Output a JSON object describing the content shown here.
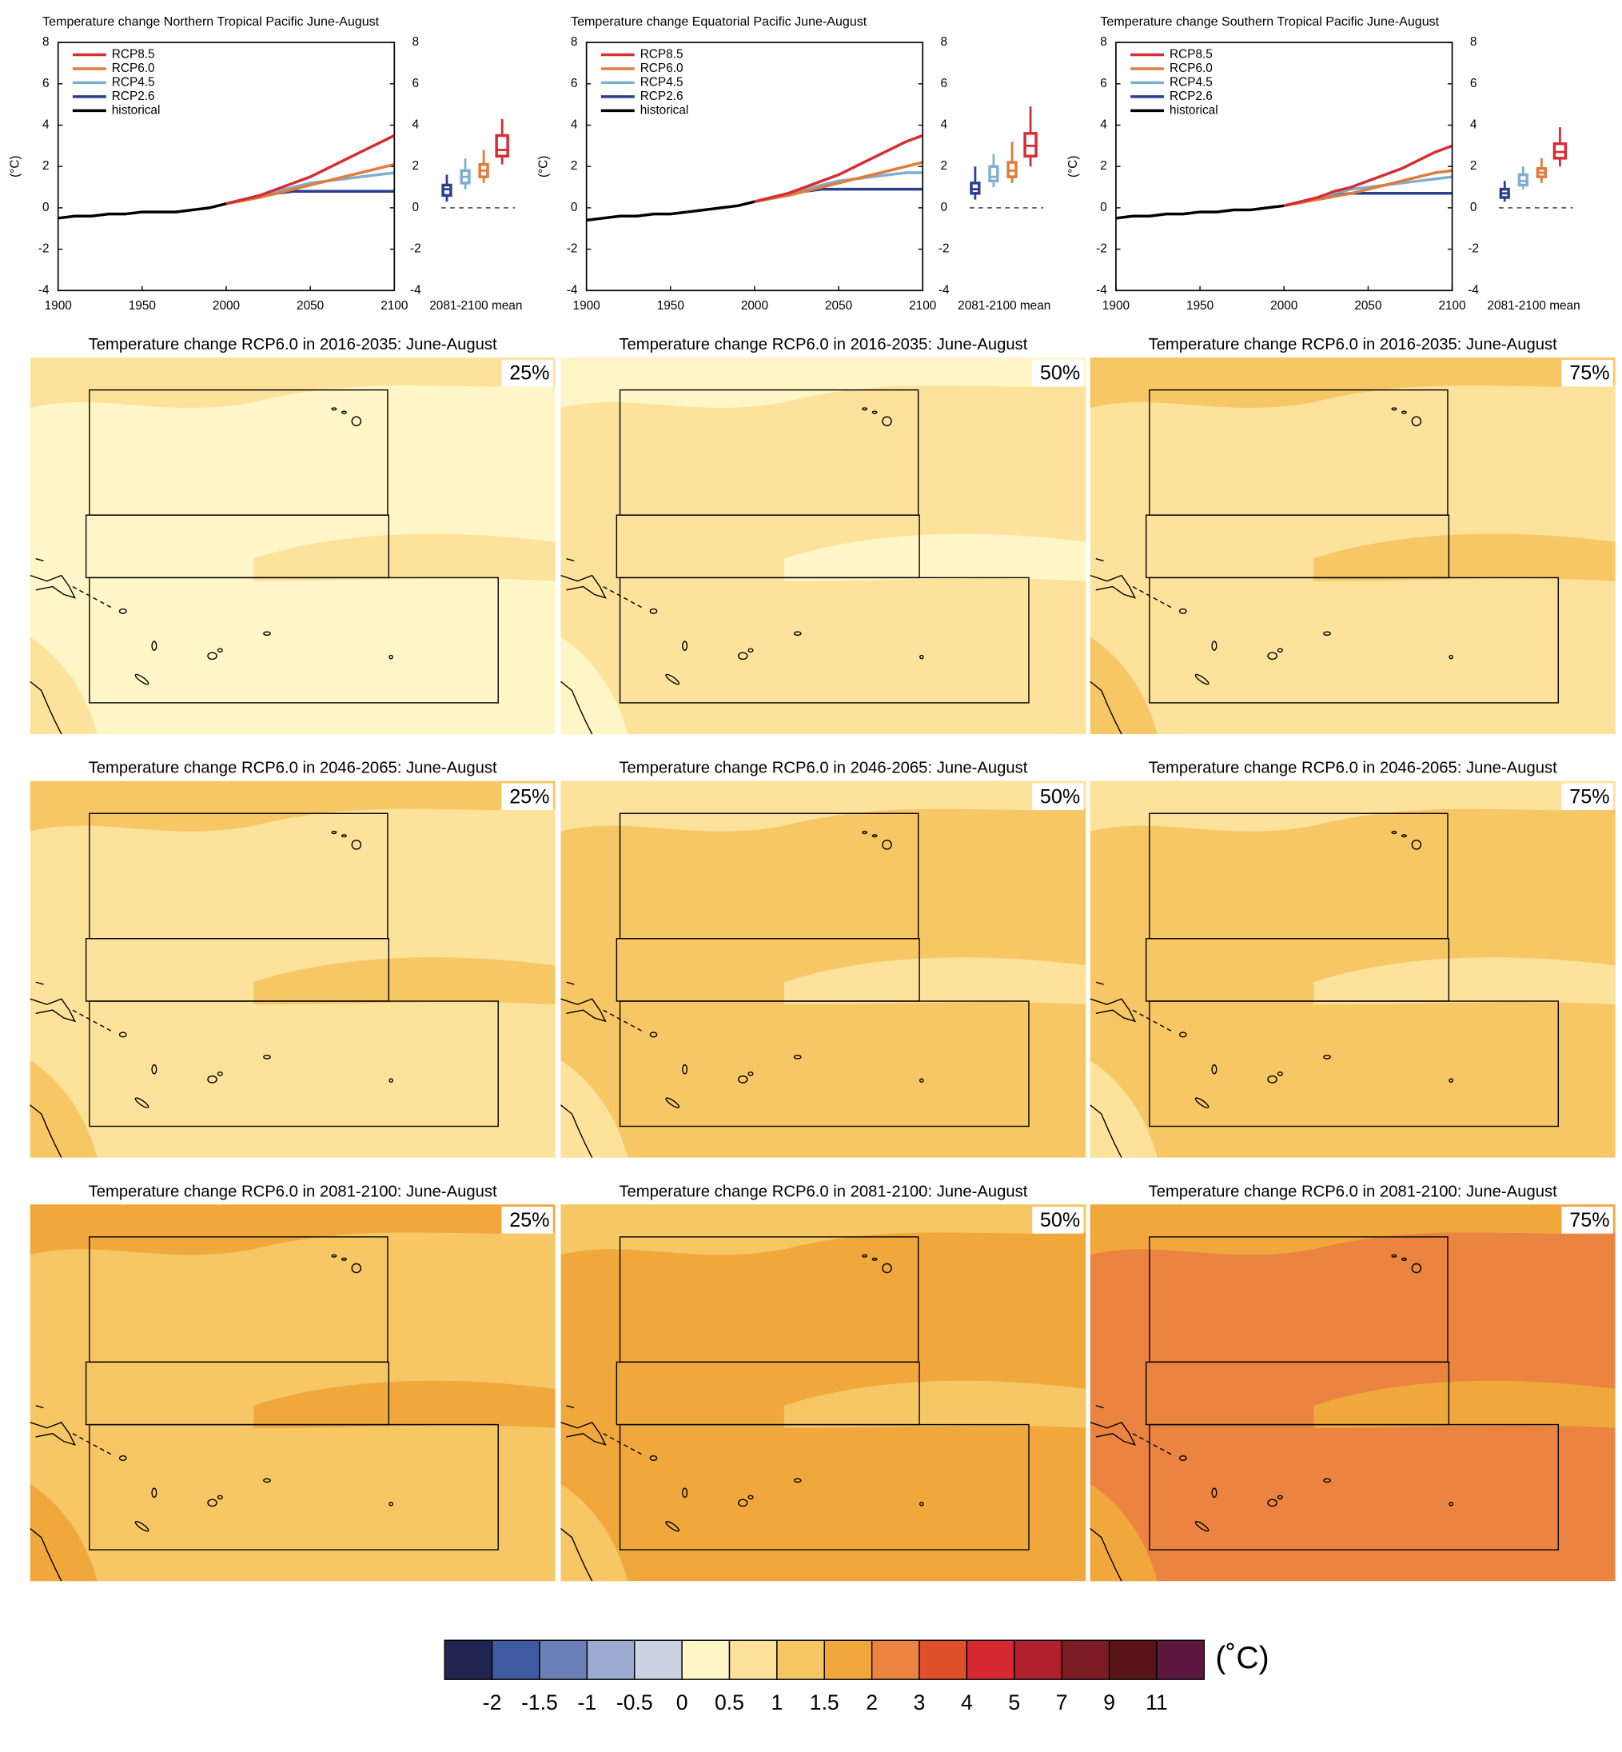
{
  "chart_data": [
    {
      "type": "line",
      "title": "Temperature change Northern Tropical Pacific June-August",
      "y_label": "(°C)",
      "box_label": "2081-2100 mean",
      "x": [
        1900,
        1910,
        1920,
        1930,
        1940,
        1950,
        1960,
        1970,
        1980,
        1990,
        2000,
        2010,
        2020,
        2030,
        2040,
        2050,
        2060,
        2070,
        2080,
        2090,
        2100
      ],
      "xlim": [
        1900,
        2100
      ],
      "xticks": [
        1900,
        1950,
        2000,
        2050,
        2100
      ],
      "ylim": [
        -4,
        8
      ],
      "yticks": [
        -4,
        -2,
        0,
        2,
        4,
        6,
        8
      ],
      "y2lim": [
        -4,
        8
      ],
      "y2ticks": [
        -4,
        -2,
        0,
        2,
        4,
        6,
        8
      ],
      "legend": "upper left",
      "series": [
        {
          "name": "RCP8.5",
          "color": "#d62d35",
          "values": [
            null,
            null,
            null,
            null,
            null,
            null,
            null,
            null,
            null,
            null,
            0.2,
            0.4,
            0.6,
            0.9,
            1.2,
            1.5,
            1.9,
            2.3,
            2.7,
            3.1,
            3.5
          ]
        },
        {
          "name": "RCP6.0",
          "color": "#e07b39",
          "values": [
            null,
            null,
            null,
            null,
            null,
            null,
            null,
            null,
            null,
            null,
            0.2,
            0.35,
            0.5,
            0.7,
            0.9,
            1.1,
            1.3,
            1.5,
            1.7,
            1.9,
            2.1
          ]
        },
        {
          "name": "RCP4.5",
          "color": "#7fafd0",
          "values": [
            null,
            null,
            null,
            null,
            null,
            null,
            null,
            null,
            null,
            null,
            0.2,
            0.4,
            0.6,
            0.8,
            1.0,
            1.2,
            1.3,
            1.4,
            1.5,
            1.6,
            1.7
          ]
        },
        {
          "name": "RCP2.6",
          "color": "#2a3f8f",
          "values": [
            null,
            null,
            null,
            null,
            null,
            null,
            null,
            null,
            null,
            null,
            0.2,
            0.4,
            0.6,
            0.7,
            0.8,
            0.8,
            0.8,
            0.8,
            0.8,
            0.8,
            0.8
          ]
        },
        {
          "name": "historical",
          "color": "#000000",
          "values": [
            -0.5,
            -0.4,
            -0.4,
            -0.3,
            -0.3,
            -0.2,
            -0.2,
            -0.2,
            -0.1,
            0.0,
            0.2,
            null,
            null,
            null,
            null,
            null,
            null,
            null,
            null,
            null,
            null
          ]
        }
      ],
      "boxes": [
        {
          "color": "#2a3f8f",
          "min": 0.3,
          "q1": 0.6,
          "median": 0.9,
          "q3": 1.1,
          "max": 1.6
        },
        {
          "color": "#7fafd0",
          "min": 0.9,
          "q1": 1.2,
          "median": 1.5,
          "q3": 1.8,
          "max": 2.4
        },
        {
          "color": "#e07b39",
          "min": 1.2,
          "q1": 1.5,
          "median": 1.8,
          "q3": 2.1,
          "max": 2.8
        },
        {
          "color": "#d62d35",
          "min": 2.1,
          "q1": 2.5,
          "median": 2.8,
          "q3": 3.5,
          "max": 4.3
        }
      ]
    },
    {
      "type": "line",
      "title": "Temperature change Equatorial Pacific June-August",
      "y_label": "(°C)",
      "box_label": "2081-2100 mean",
      "x": [
        1900,
        1910,
        1920,
        1930,
        1940,
        1950,
        1960,
        1970,
        1980,
        1990,
        2000,
        2010,
        2020,
        2030,
        2040,
        2050,
        2060,
        2070,
        2080,
        2090,
        2100
      ],
      "xlim": [
        1900,
        2100
      ],
      "xticks": [
        1900,
        1950,
        2000,
        2050,
        2100
      ],
      "ylim": [
        -4,
        8
      ],
      "yticks": [
        -4,
        -2,
        0,
        2,
        4,
        6,
        8
      ],
      "y2lim": [
        -4,
        8
      ],
      "y2ticks": [
        -4,
        -2,
        0,
        2,
        4,
        6,
        8
      ],
      "legend": "upper left",
      "series": [
        {
          "name": "RCP8.5",
          "color": "#d62d35",
          "values": [
            null,
            null,
            null,
            null,
            null,
            null,
            null,
            null,
            null,
            null,
            0.3,
            0.5,
            0.7,
            1.0,
            1.3,
            1.6,
            2.0,
            2.4,
            2.8,
            3.2,
            3.5
          ]
        },
        {
          "name": "RCP6.0",
          "color": "#e07b39",
          "values": [
            null,
            null,
            null,
            null,
            null,
            null,
            null,
            null,
            null,
            null,
            0.3,
            0.45,
            0.6,
            0.8,
            1.0,
            1.2,
            1.4,
            1.6,
            1.8,
            2.0,
            2.2
          ]
        },
        {
          "name": "RCP4.5",
          "color": "#7fafd0",
          "values": [
            null,
            null,
            null,
            null,
            null,
            null,
            null,
            null,
            null,
            null,
            0.3,
            0.5,
            0.7,
            0.9,
            1.1,
            1.3,
            1.4,
            1.5,
            1.6,
            1.7,
            1.7
          ]
        },
        {
          "name": "RCP2.6",
          "color": "#2a3f8f",
          "values": [
            null,
            null,
            null,
            null,
            null,
            null,
            null,
            null,
            null,
            null,
            0.3,
            0.5,
            0.7,
            0.8,
            0.9,
            0.9,
            0.9,
            0.9,
            0.9,
            0.9,
            0.9
          ]
        },
        {
          "name": "historical",
          "color": "#000000",
          "values": [
            -0.6,
            -0.5,
            -0.4,
            -0.4,
            -0.3,
            -0.3,
            -0.2,
            -0.1,
            0.0,
            0.1,
            0.3,
            null,
            null,
            null,
            null,
            null,
            null,
            null,
            null,
            null,
            null
          ]
        }
      ],
      "boxes": [
        {
          "color": "#2a3f8f",
          "min": 0.4,
          "q1": 0.7,
          "median": 0.9,
          "q3": 1.2,
          "max": 2.0
        },
        {
          "color": "#7fafd0",
          "min": 1.0,
          "q1": 1.3,
          "median": 1.5,
          "q3": 2.0,
          "max": 2.6
        },
        {
          "color": "#e07b39",
          "min": 1.2,
          "q1": 1.5,
          "median": 1.8,
          "q3": 2.2,
          "max": 3.2
        },
        {
          "color": "#d62d35",
          "min": 2.0,
          "q1": 2.5,
          "median": 3.0,
          "q3": 3.6,
          "max": 4.9
        }
      ]
    },
    {
      "type": "line",
      "title": "Temperature change Southern Tropical Pacific June-August",
      "y_label": "(°C)",
      "box_label": "2081-2100 mean",
      "x": [
        1900,
        1910,
        1920,
        1930,
        1940,
        1950,
        1960,
        1970,
        1980,
        1990,
        2000,
        2010,
        2020,
        2030,
        2040,
        2050,
        2060,
        2070,
        2080,
        2090,
        2100
      ],
      "xlim": [
        1900,
        2100
      ],
      "xticks": [
        1900,
        1950,
        2000,
        2050,
        2100
      ],
      "ylim": [
        -4,
        8
      ],
      "yticks": [
        -4,
        -2,
        0,
        2,
        4,
        6,
        8
      ],
      "y2lim": [
        -4,
        8
      ],
      "y2ticks": [
        -4,
        -2,
        0,
        2,
        4,
        6,
        8
      ],
      "legend": "upper left",
      "series": [
        {
          "name": "RCP8.5",
          "color": "#d62d35",
          "values": [
            null,
            null,
            null,
            null,
            null,
            null,
            null,
            null,
            null,
            null,
            0.1,
            0.3,
            0.5,
            0.8,
            1.0,
            1.3,
            1.6,
            1.9,
            2.3,
            2.7,
            3.0
          ]
        },
        {
          "name": "RCP6.0",
          "color": "#e07b39",
          "values": [
            null,
            null,
            null,
            null,
            null,
            null,
            null,
            null,
            null,
            null,
            0.1,
            0.25,
            0.4,
            0.55,
            0.7,
            0.9,
            1.1,
            1.3,
            1.5,
            1.7,
            1.8
          ]
        },
        {
          "name": "RCP4.5",
          "color": "#7fafd0",
          "values": [
            null,
            null,
            null,
            null,
            null,
            null,
            null,
            null,
            null,
            null,
            0.1,
            0.3,
            0.5,
            0.7,
            0.9,
            1.0,
            1.1,
            1.2,
            1.3,
            1.4,
            1.5
          ]
        },
        {
          "name": "RCP2.6",
          "color": "#2a3f8f",
          "values": [
            null,
            null,
            null,
            null,
            null,
            null,
            null,
            null,
            null,
            null,
            0.1,
            0.3,
            0.5,
            0.6,
            0.7,
            0.7,
            0.7,
            0.7,
            0.7,
            0.7,
            0.7
          ]
        },
        {
          "name": "historical",
          "color": "#000000",
          "values": [
            -0.5,
            -0.4,
            -0.4,
            -0.3,
            -0.3,
            -0.2,
            -0.2,
            -0.1,
            -0.1,
            0.0,
            0.1,
            null,
            null,
            null,
            null,
            null,
            null,
            null,
            null,
            null,
            null
          ]
        }
      ],
      "boxes": [
        {
          "color": "#2a3f8f",
          "min": 0.3,
          "q1": 0.5,
          "median": 0.7,
          "q3": 0.9,
          "max": 1.3
        },
        {
          "color": "#7fafd0",
          "min": 0.9,
          "q1": 1.1,
          "median": 1.3,
          "q3": 1.6,
          "max": 2.0
        },
        {
          "color": "#e07b39",
          "min": 1.2,
          "q1": 1.5,
          "median": 1.7,
          "q3": 1.9,
          "max": 2.4
        },
        {
          "color": "#d62d35",
          "min": 2.0,
          "q1": 2.4,
          "median": 2.7,
          "q3": 3.1,
          "max": 3.9
        }
      ]
    },
    {
      "type": "map",
      "title": "Temperature change RCP6.0 in 2016-2035: June-August",
      "label": "25%",
      "color": "#fff6c8",
      "secondary_color": "#fde29c"
    },
    {
      "type": "map",
      "title": "Temperature change RCP6.0 in 2016-2035: June-August",
      "label": "50%",
      "color": "#fde29c",
      "secondary_color": "#fff6c8"
    },
    {
      "type": "map",
      "title": "Temperature change RCP6.0 in 2016-2035: June-August",
      "label": "75%",
      "color": "#fde29c",
      "secondary_color": "#f7c665"
    },
    {
      "type": "map",
      "title": "Temperature change RCP6.0 in 2046-2065: June-August",
      "label": "25%",
      "color": "#fde29c",
      "secondary_color": "#f7c665"
    },
    {
      "type": "map",
      "title": "Temperature change RCP6.0 in 2046-2065: June-August",
      "label": "50%",
      "color": "#f7c665",
      "secondary_color": "#fde29c"
    },
    {
      "type": "map",
      "title": "Temperature change RCP6.0 in 2046-2065: June-August",
      "label": "75%",
      "color": "#f7c665",
      "secondary_color": "#fde29c"
    },
    {
      "type": "map",
      "title": "Temperature change RCP6.0 in 2081-2100: June-August",
      "label": "25%",
      "color": "#f7c665",
      "secondary_color": "#f0a83c"
    },
    {
      "type": "map",
      "title": "Temperature change RCP6.0 in 2081-2100: June-August",
      "label": "50%",
      "color": "#f0a83c",
      "secondary_color": "#f7c665"
    },
    {
      "type": "map",
      "title": "Temperature change RCP6.0 in 2081-2100: June-August",
      "label": "75%",
      "color": "#ea8440",
      "secondary_color": "#f0a83c"
    },
    {
      "type": "colorbar",
      "label": "(˚C)",
      "colors": [
        "#1f2450",
        "#3f5aa0",
        "#6b80b8",
        "#9aaad0",
        "#cbd3e3",
        "#fff6c8",
        "#fde29c",
        "#f7c665",
        "#f0a83c",
        "#ea8440",
        "#e0502c",
        "#d62830",
        "#b01f2c",
        "#7c1c22",
        "#5a1418",
        "#5e1840"
      ],
      "ticks": [
        -2,
        -1.5,
        -1,
        -0.5,
        0,
        0.5,
        1,
        1.5,
        2,
        3,
        4,
        5,
        7,
        9,
        11
      ]
    }
  ]
}
